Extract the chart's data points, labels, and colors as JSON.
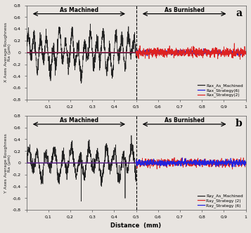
{
  "title_a": "a",
  "title_b": "b",
  "xlabel": "Distance  (mm)",
  "ylabel_a": "X Axes Average Roughness\nRa (μm)",
  "ylabel_b": "Y Axes Average Roughness\nRa (μm)",
  "ylim": [
    -0.8,
    0.8
  ],
  "yticks": [
    -0.8,
    -0.6,
    -0.4,
    -0.2,
    0,
    0.2,
    0.4,
    0.6,
    0.8
  ],
  "ytick_labels": [
    "-0,8",
    "-0,6",
    "-0,4",
    "-0,2",
    "0",
    "0,2",
    "0,4",
    "0,6",
    "0,8"
  ],
  "xlim": [
    0,
    1.0
  ],
  "xticks": [
    0,
    0.1,
    0.2,
    0.3,
    0.4,
    0.5,
    0.6,
    0.7,
    0.8,
    0.9,
    1.0
  ],
  "xtick_labels": [
    "",
    "0,1",
    "0,2",
    "0,3",
    "0,4",
    "0,5",
    "0,6",
    "0,7",
    "0,8",
    "0,9",
    "1"
  ],
  "dashed_line_x": 0.5,
  "legend_a": [
    "Rax_As_Machined",
    "Rax_Strategy(6)",
    "Rax_Strategy(2)"
  ],
  "legend_b": [
    "Ray_As_Machined",
    "Ray_Strategy (2)",
    "Ray_Strategy (6)"
  ],
  "colors": {
    "as_machined": "#222222",
    "strategy6_a": "#2222dd",
    "strategy2_a": "#dd2222",
    "strategy2_b": "#dd2222",
    "strategy6_b": "#2222dd"
  },
  "bg_color": "#e8e4e0",
  "annotation_machined": "As Machined",
  "annotation_burnished": "As Burnished",
  "seed_a": 42,
  "seed_b": 99
}
